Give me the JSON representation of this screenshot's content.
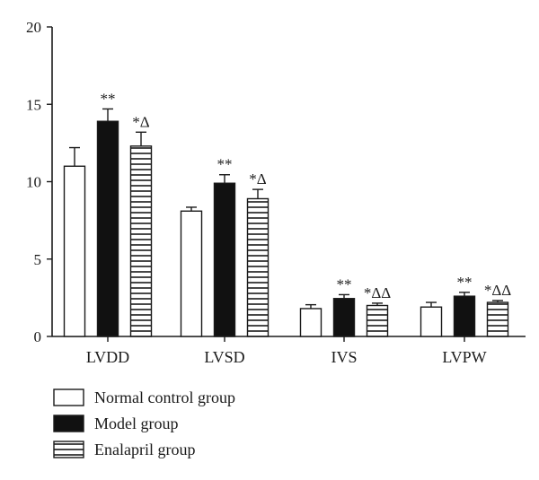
{
  "chart_data": {
    "type": "bar",
    "categories": [
      "LVDD",
      "LVSD",
      "IVS",
      "LVPW"
    ],
    "ylim": [
      0,
      20
    ],
    "yticks": [
      0,
      5,
      10,
      15,
      20
    ],
    "grid": false,
    "legend_position": "bottom-left",
    "series": [
      {
        "name": "Normal control group",
        "fill": "white",
        "values": [
          11.0,
          8.1,
          1.8,
          1.9
        ],
        "errors": [
          1.2,
          0.25,
          0.25,
          0.3
        ],
        "annotations": [
          "",
          "",
          "",
          ""
        ]
      },
      {
        "name": "Model group",
        "fill": "black",
        "values": [
          13.9,
          9.9,
          2.45,
          2.6
        ],
        "errors": [
          0.8,
          0.55,
          0.25,
          0.25
        ],
        "annotations": [
          "**",
          "**",
          "**",
          "**"
        ]
      },
      {
        "name": "Enalapril group",
        "fill": "hatched",
        "values": [
          12.3,
          8.9,
          2.0,
          2.2
        ],
        "errors": [
          0.9,
          0.6,
          0.15,
          0.12
        ],
        "annotations": [
          "*Δ",
          "*Δ",
          "*ΔΔ",
          "*ΔΔ"
        ]
      }
    ]
  },
  "colors": {
    "bar_outline": "#1a1a1a",
    "model_fill": "#111111",
    "normal_fill": "#ffffff",
    "hatch_line": "#1a1a1a"
  }
}
